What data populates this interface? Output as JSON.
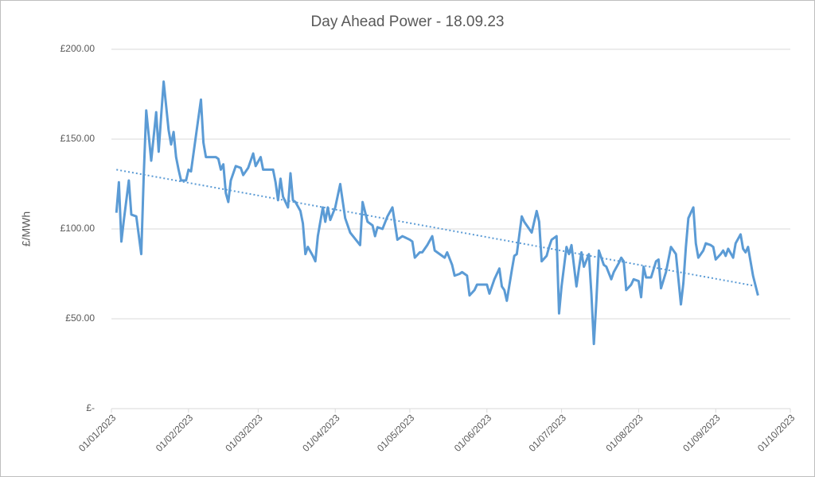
{
  "chart_data": {
    "type": "line",
    "title": "Day Ahead Power - 18.09.23",
    "y_label": "£/MWh",
    "grid": true,
    "xlim": [
      "2023-01-01",
      "2023-10-01"
    ],
    "xticks": [
      {
        "value": "2023-01-01",
        "label": "01/01/2023"
      },
      {
        "value": "2023-02-01",
        "label": "01/02/2023"
      },
      {
        "value": "2023-03-01",
        "label": "01/03/2023"
      },
      {
        "value": "2023-04-01",
        "label": "01/04/2023"
      },
      {
        "value": "2023-05-01",
        "label": "01/05/2023"
      },
      {
        "value": "2023-06-01",
        "label": "01/06/2023"
      },
      {
        "value": "2023-07-01",
        "label": "01/07/2023"
      },
      {
        "value": "2023-08-01",
        "label": "01/08/2023"
      },
      {
        "value": "2023-09-01",
        "label": "01/09/2023"
      },
      {
        "value": "2023-10-01",
        "label": "01/10/2023"
      }
    ],
    "ylim": [
      0,
      200
    ],
    "yticks": [
      {
        "value": 0,
        "label": "£-"
      },
      {
        "value": 50,
        "label": "£50.00"
      },
      {
        "value": 100,
        "label": "£100.00"
      },
      {
        "value": 150,
        "label": "£150.00"
      },
      {
        "value": 200,
        "label": "£200.00"
      }
    ],
    "x": [
      "2023-01-03",
      "2023-01-04",
      "2023-01-05",
      "2023-01-06",
      "2023-01-08",
      "2023-01-09",
      "2023-01-11",
      "2023-01-13",
      "2023-01-14",
      "2023-01-15",
      "2023-01-17",
      "2023-01-19",
      "2023-01-20",
      "2023-01-21",
      "2023-01-22",
      "2023-01-24",
      "2023-01-25",
      "2023-01-26",
      "2023-01-27",
      "2023-01-28",
      "2023-01-29",
      "2023-01-31",
      "2023-02-01",
      "2023-02-02",
      "2023-02-04",
      "2023-02-06",
      "2023-02-07",
      "2023-02-08",
      "2023-02-12",
      "2023-02-13",
      "2023-02-14",
      "2023-02-15",
      "2023-02-16",
      "2023-02-17",
      "2023-02-18",
      "2023-02-20",
      "2023-02-22",
      "2023-02-23",
      "2023-02-25",
      "2023-02-27",
      "2023-02-28",
      "2023-03-02",
      "2023-03-03",
      "2023-03-05",
      "2023-03-07",
      "2023-03-08",
      "2023-03-09",
      "2023-03-10",
      "2023-03-11",
      "2023-03-13",
      "2023-03-14",
      "2023-03-15",
      "2023-03-16",
      "2023-03-18",
      "2023-03-19",
      "2023-03-20",
      "2023-03-21",
      "2023-03-23",
      "2023-03-24",
      "2023-03-25",
      "2023-03-27",
      "2023-03-28",
      "2023-03-29",
      "2023-03-30",
      "2023-04-01",
      "2023-04-03",
      "2023-04-05",
      "2023-04-07",
      "2023-04-11",
      "2023-04-12",
      "2023-04-14",
      "2023-04-16",
      "2023-04-17",
      "2023-04-18",
      "2023-04-20",
      "2023-04-22",
      "2023-04-24",
      "2023-04-26",
      "2023-04-28",
      "2023-05-01",
      "2023-05-02",
      "2023-05-03",
      "2023-05-05",
      "2023-05-06",
      "2023-05-08",
      "2023-05-10",
      "2023-05-11",
      "2023-05-13",
      "2023-05-14",
      "2023-05-15",
      "2023-05-16",
      "2023-05-18",
      "2023-05-19",
      "2023-05-21",
      "2023-05-22",
      "2023-05-24",
      "2023-05-25",
      "2023-05-27",
      "2023-05-28",
      "2023-05-30",
      "2023-06-01",
      "2023-06-02",
      "2023-06-03",
      "2023-06-04",
      "2023-06-06",
      "2023-06-07",
      "2023-06-08",
      "2023-06-09",
      "2023-06-11",
      "2023-06-12",
      "2023-06-13",
      "2023-06-15",
      "2023-06-16",
      "2023-06-19",
      "2023-06-21",
      "2023-06-22",
      "2023-06-23",
      "2023-06-25",
      "2023-06-26",
      "2023-06-27",
      "2023-06-29",
      "2023-06-30",
      "2023-07-01",
      "2023-07-03",
      "2023-07-04",
      "2023-07-05",
      "2023-07-07",
      "2023-07-08",
      "2023-07-09",
      "2023-07-10",
      "2023-07-12",
      "2023-07-13",
      "2023-07-14",
      "2023-07-15",
      "2023-07-16",
      "2023-07-18",
      "2023-07-19",
      "2023-07-21",
      "2023-07-22",
      "2023-07-24",
      "2023-07-25",
      "2023-07-26",
      "2023-07-27",
      "2023-07-29",
      "2023-07-30",
      "2023-08-01",
      "2023-08-02",
      "2023-08-03",
      "2023-08-04",
      "2023-08-06",
      "2023-08-08",
      "2023-08-09",
      "2023-08-10",
      "2023-08-12",
      "2023-08-14",
      "2023-08-16",
      "2023-08-17",
      "2023-08-18",
      "2023-08-19",
      "2023-08-20",
      "2023-08-21",
      "2023-08-23",
      "2023-08-24",
      "2023-08-25",
      "2023-08-27",
      "2023-08-28",
      "2023-08-30",
      "2023-08-31",
      "2023-09-01",
      "2023-09-03",
      "2023-09-04",
      "2023-09-05",
      "2023-09-06",
      "2023-09-08",
      "2023-09-09",
      "2023-09-11",
      "2023-09-12",
      "2023-09-13",
      "2023-09-14",
      "2023-09-16",
      "2023-09-18"
    ],
    "series": [
      {
        "color": "#5b9bd5",
        "values": [
          109,
          126,
          93,
          105,
          127,
          108,
          107,
          86,
          130,
          166,
          138,
          165,
          143,
          163,
          182,
          155,
          147,
          154,
          140,
          133,
          127,
          127,
          133,
          132,
          152,
          172,
          148,
          140,
          140,
          139,
          133,
          136,
          120,
          115,
          127,
          135,
          134,
          130,
          134,
          142,
          135,
          140,
          133,
          133,
          133,
          126,
          116,
          128,
          118,
          112,
          131,
          116,
          115,
          110,
          103,
          86,
          90,
          85,
          82,
          96,
          112,
          104,
          112,
          105,
          112,
          125,
          106,
          98,
          91,
          115,
          104,
          102,
          96,
          101,
          100,
          107,
          112,
          94,
          96,
          94,
          93,
          84,
          87,
          87,
          91,
          96,
          88,
          86,
          85,
          84,
          87,
          80,
          74,
          75,
          76,
          74,
          63,
          66,
          69,
          69,
          69,
          64,
          68,
          72,
          78,
          68,
          66,
          60,
          77,
          85,
          86,
          107,
          104,
          98,
          110,
          104,
          82,
          85,
          90,
          94,
          96,
          53,
          68,
          90,
          86,
          91,
          68,
          78,
          87,
          79,
          86,
          64,
          36,
          60,
          88,
          80,
          79,
          72,
          76,
          81,
          84,
          82,
          66,
          69,
          72,
          71,
          62,
          79,
          73,
          73,
          82,
          83,
          67,
          76,
          90,
          86,
          72,
          58,
          70,
          90,
          106,
          112,
          92,
          84,
          88,
          92,
          91,
          90,
          83,
          86,
          88,
          85,
          89,
          84,
          92,
          97,
          89,
          87,
          90,
          74,
          63
        ]
      }
    ],
    "trendline": {
      "x": [
        "2023-01-03",
        "2023-09-18"
      ],
      "values": [
        133,
        68
      ],
      "color": "#5b9bd5"
    }
  }
}
